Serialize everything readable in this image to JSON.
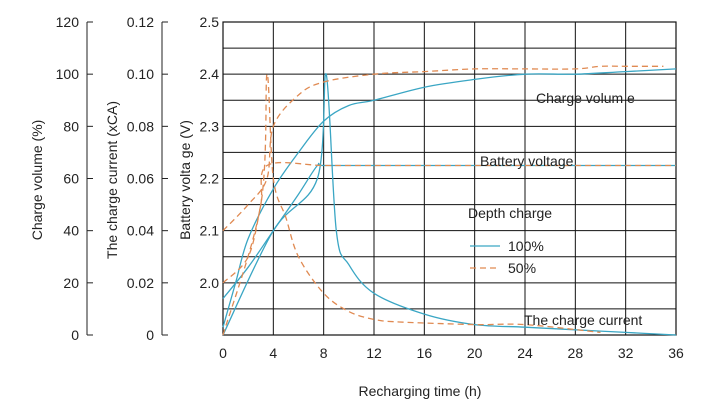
{
  "chart_data": {
    "type": "line",
    "xlabel": "Recharging time    (h)",
    "x_ticks": [
      "0",
      "4",
      "8",
      "12",
      "16",
      "20",
      "24",
      "28",
      "32",
      "36"
    ],
    "xlim": [
      0,
      36
    ],
    "axes": [
      {
        "label": "Charge volume (%)",
        "ticks": [
          "0",
          "20",
          "40",
          "60",
          "80",
          "100",
          "120"
        ],
        "ylim": [
          0,
          120
        ]
      },
      {
        "label": "The charge current   (xCA)",
        "ticks": [
          "0",
          "0.02",
          "0.04",
          "0.06",
          "0.08",
          "0.10",
          "0.12"
        ],
        "ylim": [
          0,
          0.12
        ]
      },
      {
        "label": "Battery volta ge    (V)",
        "ticks": [
          "2.0",
          "2.1",
          "2.2",
          "2.3",
          "2.4",
          "2.5"
        ],
        "ylim": [
          1.9,
          2.5
        ]
      }
    ],
    "grid": true,
    "legend": {
      "placement": "center-right",
      "title": "Depth charge",
      "entries": [
        {
          "name": "100%",
          "style": "solid",
          "color": "#3aa6c4"
        },
        {
          "name": "50%",
          "style": "dashed",
          "color": "#e08a52"
        }
      ]
    },
    "annotations": [
      "Charge volum e",
      "Battery voltage",
      "The charge current"
    ],
    "series": [
      {
        "name": "100%",
        "quantity": "Charge volume",
        "unit_axis": "Charge volume (%)",
        "x": [
          0,
          1,
          2,
          4,
          6,
          8,
          10,
          12,
          16,
          20,
          24,
          28,
          32,
          36
        ],
        "y": [
          3,
          20,
          37,
          56,
          70,
          82,
          88,
          90,
          95,
          98,
          100,
          100,
          101,
          102
        ]
      },
      {
        "name": "100%",
        "quantity": "Battery voltage",
        "unit_axis": "Battery volta ge    (V)",
        "x": [
          0,
          2,
          4,
          6,
          7.5,
          8,
          12,
          16,
          20,
          24,
          28,
          32,
          36
        ],
        "y": [
          1.97,
          2.03,
          2.1,
          2.17,
          2.225,
          2.225,
          2.225,
          2.225,
          2.225,
          2.225,
          2.225,
          2.225,
          2.225
        ]
      },
      {
        "name": "100%",
        "quantity": "The charge current",
        "unit_axis": "The charge current   (xCA)",
        "x": [
          0,
          4,
          7.5,
          8.2,
          9,
          10,
          12,
          16,
          20,
          24,
          28,
          32,
          36
        ],
        "y": [
          0,
          0.04,
          0.06,
          0.1,
          0.04,
          0.027,
          0.016,
          0.008,
          0.004,
          0.003,
          0.002,
          0.001,
          0
        ]
      },
      {
        "name": "50%",
        "quantity": "Charge volume",
        "unit_axis": "Charge volume (%)",
        "x": [
          0,
          2,
          3.5,
          4,
          6,
          8,
          12,
          16,
          20,
          24,
          28,
          30,
          32,
          35
        ],
        "y": [
          40,
          50,
          60,
          80,
          92,
          97,
          100,
          101,
          102,
          102,
          102,
          103,
          103,
          103
        ]
      },
      {
        "name": "50%",
        "quantity": "Battery voltage",
        "unit_axis": "Battery volta ge    (V)",
        "x": [
          0,
          2,
          3,
          3.5,
          8,
          12,
          24,
          36
        ],
        "y": [
          2.0,
          2.05,
          2.15,
          2.225,
          2.225,
          2.225,
          2.225,
          2.225
        ]
      },
      {
        "name": "50%",
        "quantity": "The charge current",
        "unit_axis": "The charge current   (xCA)",
        "x": [
          0,
          3,
          3.5,
          4,
          5,
          6,
          8,
          10,
          12,
          14,
          20,
          24,
          30
        ],
        "y": [
          0,
          0.05,
          0.1,
          0.06,
          0.045,
          0.03,
          0.016,
          0.009,
          0.006,
          0.005,
          0.004,
          0.004,
          0.001
        ]
      }
    ]
  }
}
